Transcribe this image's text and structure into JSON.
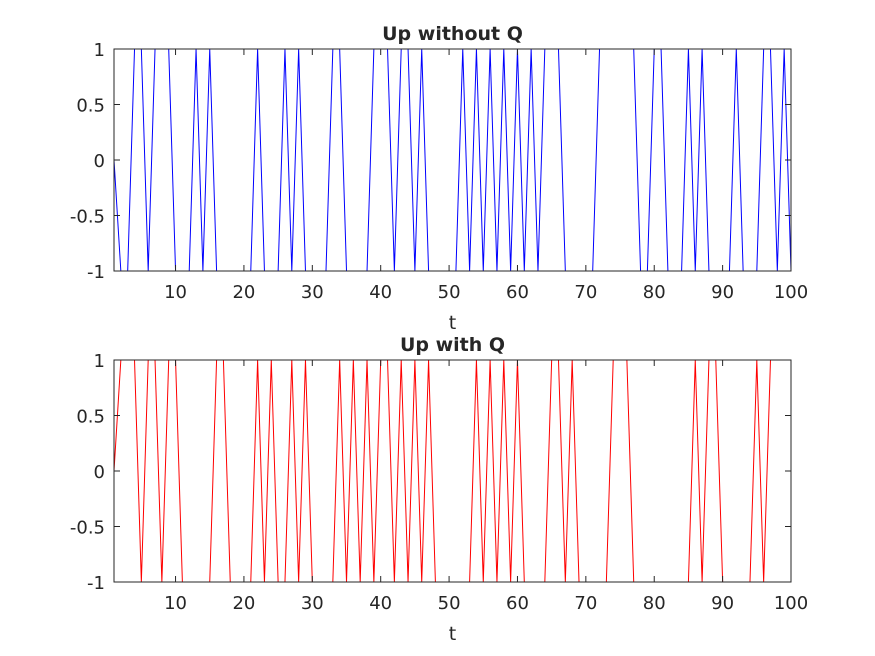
{
  "chart_data": [
    {
      "type": "line",
      "title": "Up without Q",
      "xlabel": "t",
      "ylabel": "",
      "xlim": [
        1,
        100
      ],
      "ylim": [
        -1,
        1
      ],
      "x_ticks": [
        10,
        20,
        30,
        40,
        50,
        60,
        70,
        80,
        90,
        100
      ],
      "y_ticks": [
        -1,
        -0.5,
        0,
        0.5,
        1
      ],
      "x_tick_labels": [
        "10",
        "20",
        "30",
        "40",
        "50",
        "60",
        "70",
        "80",
        "90",
        "100"
      ],
      "y_tick_labels": [
        "-1",
        "-0.5",
        "0",
        "0.5",
        "1"
      ],
      "grid": false,
      "color": "#0000ff",
      "series": [
        {
          "values": [
            0,
            -1,
            -1,
            1,
            1,
            -1,
            1,
            1,
            1,
            -1,
            -1,
            -1,
            1,
            -1,
            1,
            -1,
            -1,
            -1,
            -1,
            -1,
            -1,
            1,
            -1,
            -1,
            -1,
            1,
            -1,
            1,
            -1,
            -1,
            -1,
            -1,
            1,
            1,
            -1,
            -1,
            -1,
            -1,
            1,
            1,
            1,
            -1,
            1,
            1,
            -1,
            1,
            -1,
            -1,
            -1,
            -1,
            -1,
            1,
            -1,
            1,
            -1,
            1,
            -1,
            1,
            -1,
            1,
            -1,
            1,
            -1,
            1,
            1,
            1,
            -1,
            -1,
            -1,
            -1,
            -1,
            1,
            1,
            1,
            1,
            1,
            1,
            -1,
            -1,
            1,
            1,
            -1,
            -1,
            -1,
            1,
            -1,
            1,
            -1,
            -1,
            -1,
            -1,
            1,
            -1,
            -1,
            -1,
            1,
            1,
            -1,
            1,
            -1
          ]
        }
      ]
    },
    {
      "type": "line",
      "title": "Up with Q",
      "xlabel": "t",
      "ylabel": "",
      "xlim": [
        1,
        100
      ],
      "ylim": [
        -1,
        1
      ],
      "x_ticks": [
        10,
        20,
        30,
        40,
        50,
        60,
        70,
        80,
        90,
        100
      ],
      "y_ticks": [
        -1,
        -0.5,
        0,
        0.5,
        1
      ],
      "x_tick_labels": [
        "10",
        "20",
        "30",
        "40",
        "50",
        "60",
        "70",
        "80",
        "90",
        "100"
      ],
      "y_tick_labels": [
        "-1",
        "-0.5",
        "0",
        "0.5",
        "1"
      ],
      "grid": false,
      "color": "#ff0000",
      "series": [
        {
          "values": [
            0,
            1,
            1,
            1,
            -1,
            1,
            1,
            -1,
            1,
            1,
            -1,
            -1,
            -1,
            -1,
            -1,
            1,
            1,
            -1,
            -1,
            -1,
            -1,
            1,
            -1,
            1,
            -1,
            -1,
            1,
            -1,
            1,
            -1,
            -1,
            -1,
            -1,
            1,
            -1,
            1,
            -1,
            1,
            -1,
            1,
            1,
            -1,
            1,
            -1,
            1,
            -1,
            1,
            -1,
            -1,
            -1,
            -1,
            -1,
            -1,
            1,
            -1,
            1,
            -1,
            1,
            -1,
            1,
            -1,
            -1,
            -1,
            -1,
            1,
            1,
            -1,
            1,
            -1,
            -1,
            -1,
            -1,
            -1,
            1,
            1,
            1,
            -1,
            -1,
            -1,
            -1,
            -1,
            -1,
            -1,
            -1,
            -1,
            1,
            -1,
            1,
            1,
            -1,
            -1,
            -1,
            -1,
            -1,
            1,
            -1,
            1,
            1,
            1,
            1
          ]
        }
      ]
    }
  ]
}
